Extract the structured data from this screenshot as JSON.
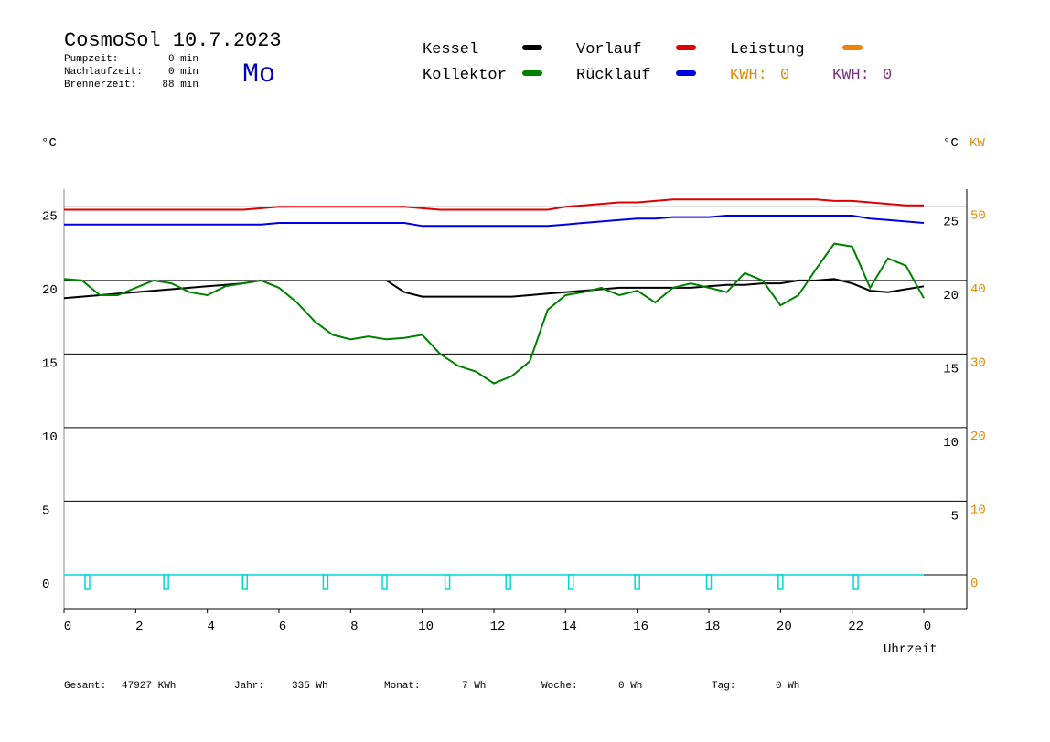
{
  "chart_data": {
    "type": "line",
    "title": "CosmoSol 10.7.2023",
    "weekday": "Mo",
    "info": [
      {
        "label": "Pumpzeit:",
        "value": "0 min"
      },
      {
        "label": "Nachlaufzeit:",
        "value": "0 min"
      },
      {
        "label": "Brennerzeit:",
        "value": "88 min"
      }
    ],
    "y_unit": "°C",
    "y2_unit_celsius": "°C",
    "y2_unit": "KW",
    "x_label": "Uhrzeit",
    "xlim": [
      0,
      25.2
    ],
    "xticks": [
      0,
      2,
      4,
      6,
      8,
      10,
      12,
      14,
      16,
      18,
      20,
      22,
      {
        "value": 24,
        "label": "0"
      }
    ],
    "ylim": [
      -2.3,
      26.2
    ],
    "yticks": [
      0,
      5,
      10,
      15,
      20,
      25
    ],
    "yticks_right": [
      5,
      10,
      15,
      20,
      25
    ],
    "y2lim": [
      -4.6,
      52.4
    ],
    "y2ticks": [
      0,
      10,
      20,
      30,
      40,
      50
    ],
    "grid": true,
    "x": [
      0,
      0.5,
      1,
      1.5,
      2,
      2.5,
      3,
      3.5,
      4,
      4.5,
      5,
      5.5,
      6,
      6.5,
      7,
      7.5,
      8,
      8.5,
      9,
      9.5,
      10,
      10.5,
      11,
      11.5,
      12,
      12.5,
      13,
      13.5,
      14,
      14.5,
      15,
      15.5,
      16,
      16.5,
      17,
      17.5,
      18,
      18.5,
      19,
      19.5,
      20,
      20.5,
      21,
      21.5,
      22,
      22.5,
      23,
      23.5,
      24
    ],
    "series": [
      {
        "name": "Kessel",
        "color": "#000000",
        "values": [
          18.8,
          18.9,
          19.0,
          19.1,
          19.2,
          19.3,
          19.4,
          19.5,
          19.6,
          19.7,
          19.8,
          20.0,
          null,
          null,
          null,
          null,
          null,
          null,
          20.0,
          19.2,
          18.9,
          18.9,
          18.9,
          18.9,
          18.9,
          18.9,
          19.0,
          19.1,
          19.2,
          19.3,
          19.4,
          19.5,
          19.5,
          19.5,
          19.5,
          19.5,
          19.6,
          19.7,
          19.7,
          19.8,
          19.8,
          20.0,
          20.0,
          20.1,
          19.8,
          19.3,
          19.2,
          19.4,
          19.6
        ]
      },
      {
        "name": "Kollektor",
        "color": "#008000",
        "values": [
          20.1,
          20.0,
          19.0,
          19.0,
          19.5,
          20.0,
          19.8,
          19.2,
          19.0,
          19.6,
          19.8,
          20.0,
          19.5,
          18.5,
          17.2,
          16.3,
          16.0,
          16.2,
          16.0,
          16.1,
          16.3,
          15.0,
          14.2,
          13.8,
          13.0,
          13.5,
          14.5,
          18.0,
          19.0,
          19.2,
          19.5,
          19.0,
          19.3,
          18.5,
          19.5,
          19.8,
          19.5,
          19.2,
          20.5,
          20.0,
          18.3,
          19.0,
          20.8,
          22.5,
          22.3,
          19.5,
          21.5,
          21.0,
          18.8
        ]
      },
      {
        "name": "Vorlauf",
        "color": "#e00000",
        "values": [
          24.8,
          24.8,
          24.8,
          24.8,
          24.8,
          24.8,
          24.8,
          24.8,
          24.8,
          24.8,
          24.8,
          24.9,
          25.0,
          25.0,
          25.0,
          25.0,
          25.0,
          25.0,
          25.0,
          25.0,
          24.9,
          24.8,
          24.8,
          24.8,
          24.8,
          24.8,
          24.8,
          24.8,
          25.0,
          25.1,
          25.2,
          25.3,
          25.3,
          25.4,
          25.5,
          25.5,
          25.5,
          25.5,
          25.5,
          25.5,
          25.5,
          25.5,
          25.5,
          25.4,
          25.4,
          25.3,
          25.2,
          25.1,
          25.1
        ]
      },
      {
        "name": "Rücklauf",
        "color": "#0000e0",
        "values": [
          23.8,
          23.8,
          23.8,
          23.8,
          23.8,
          23.8,
          23.8,
          23.8,
          23.8,
          23.8,
          23.8,
          23.8,
          23.9,
          23.9,
          23.9,
          23.9,
          23.9,
          23.9,
          23.9,
          23.9,
          23.7,
          23.7,
          23.7,
          23.7,
          23.7,
          23.7,
          23.7,
          23.7,
          23.8,
          23.9,
          24.0,
          24.1,
          24.2,
          24.2,
          24.3,
          24.3,
          24.3,
          24.4,
          24.4,
          24.4,
          24.4,
          24.4,
          24.4,
          24.4,
          24.4,
          24.2,
          24.1,
          24.0,
          23.9
        ]
      },
      {
        "name": "Leistung",
        "color": "#f08000",
        "axis": "y2",
        "values": [
          null,
          null,
          null,
          null,
          null,
          null,
          null,
          null,
          null,
          null,
          null,
          null,
          null,
          null,
          null,
          null,
          null,
          null,
          null,
          null,
          null,
          null,
          null,
          null,
          null,
          null,
          null,
          null,
          null,
          null,
          null,
          null,
          null,
          null,
          null,
          null,
          null,
          null,
          null,
          null,
          null,
          null,
          null,
          null,
          null,
          null,
          null,
          null,
          null
        ]
      }
    ],
    "pump_color": "#00d8d8",
    "pump_x": [
      0.65,
      2.85,
      5.05,
      7.3,
      8.95,
      10.7,
      12.4,
      14.15,
      16.0,
      18.0,
      20.0,
      22.1
    ],
    "kwh": [
      {
        "label": "KWH:",
        "value": 0,
        "color": "#e08a00"
      },
      {
        "label": "KWH:",
        "value": 0,
        "color": "#803080"
      }
    ],
    "totals": [
      {
        "label": "Gesamt:",
        "value": "47927 KWh"
      },
      {
        "label": "Jahr:",
        "value": "335 Wh"
      },
      {
        "label": "Monat:",
        "value": "7 Wh"
      },
      {
        "label": "Woche:",
        "value": "0 Wh"
      },
      {
        "label": "Tag:",
        "value": "0 Wh"
      }
    ]
  }
}
